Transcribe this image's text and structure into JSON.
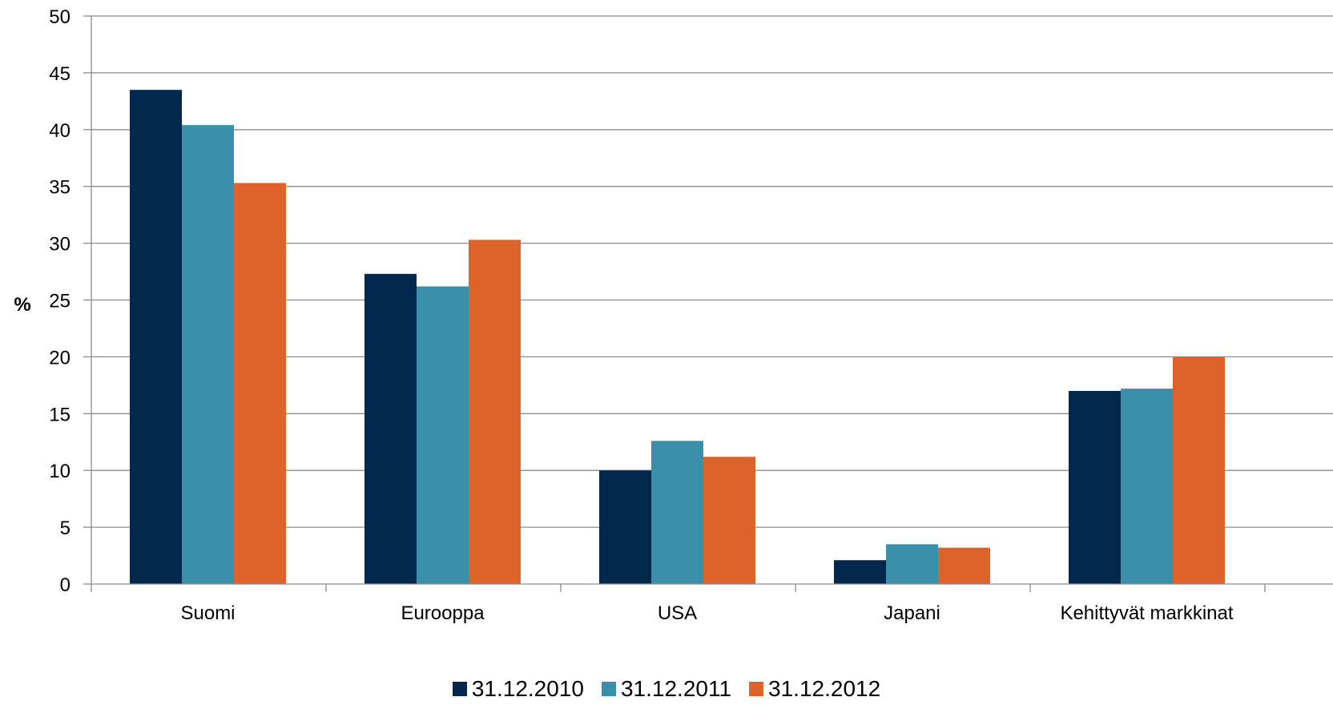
{
  "chart_data": {
    "type": "bar",
    "title": "",
    "xlabel": "",
    "ylabel": "%",
    "ylim": [
      0,
      50
    ],
    "yticks": [
      0,
      5,
      10,
      15,
      20,
      25,
      30,
      35,
      40,
      45,
      50
    ],
    "grid": true,
    "legend_position": "bottom",
    "categories": [
      "Suomi",
      "Eurooppa",
      "USA",
      "Japani",
      "Kehittyvät markkinat"
    ],
    "series": [
      {
        "name": "31.12.2010",
        "color": "#03284d",
        "values": [
          43.5,
          27.3,
          10.0,
          2.1,
          17.0
        ]
      },
      {
        "name": "31.12.2011",
        "color": "#3a8fab",
        "values": [
          40.4,
          26.2,
          12.6,
          3.5,
          17.2
        ]
      },
      {
        "name": "31.12.2012",
        "color": "#de632b",
        "values": [
          35.3,
          30.3,
          11.2,
          3.2,
          20.0
        ]
      }
    ]
  }
}
